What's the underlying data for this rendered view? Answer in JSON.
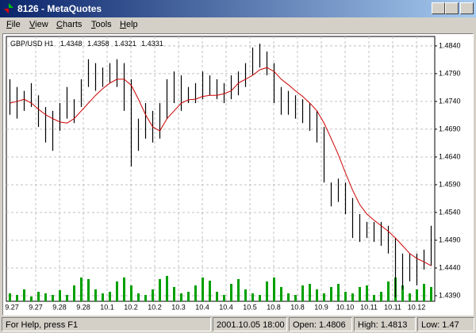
{
  "window": {
    "title": "8126 - MetaQuotes",
    "menu": [
      "File",
      "View",
      "Charts",
      "Tools",
      "Help"
    ]
  },
  "chart_data": {
    "type": "ohlc",
    "title": "GBP/USD H1",
    "quote": [
      "1.4348",
      "1.4358",
      "1.4321",
      "1.4331"
    ],
    "x_labels": [
      "9.27",
      "9.27",
      "9.28",
      "9.28",
      "10.1",
      "10.2",
      "10.2",
      "10.3",
      "10.4",
      "10.4",
      "10.5",
      "10.8",
      "10.8",
      "10.9",
      "10.10",
      "10.11",
      "10.11",
      "10.12"
    ],
    "high": [
      1.478,
      1.4766,
      1.4759,
      1.4773,
      1.4751,
      1.473,
      1.4723,
      1.4737,
      1.4766,
      1.4744,
      1.478,
      1.4816,
      1.4809,
      1.4801,
      1.4809,
      1.4816,
      1.4809,
      1.478,
      1.4709,
      1.4737,
      1.4723,
      1.4737,
      1.478,
      1.4794,
      1.4787,
      1.4766,
      1.4773,
      1.4794,
      1.4787,
      1.478,
      1.4773,
      1.4787,
      1.4794,
      1.4809,
      1.4837,
      1.4844,
      1.483,
      1.4809,
      1.4766,
      1.4759,
      1.4751,
      1.4744,
      1.4737,
      1.4723,
      1.4694,
      1.4594,
      1.4601,
      1.4594,
      1.4566,
      1.4537,
      1.4523,
      1.4523,
      1.4523,
      1.4516,
      1.4494,
      1.4466,
      1.4466,
      1.4466,
      1.4473,
      1.4516
    ],
    "low": [
      1.4716,
      1.4709,
      1.4723,
      1.473,
      1.4694,
      1.4666,
      1.4651,
      1.4687,
      1.4709,
      1.4701,
      1.473,
      1.4766,
      1.4759,
      1.4766,
      1.4773,
      1.4766,
      1.4723,
      1.4623,
      1.4651,
      1.4673,
      1.4666,
      1.4673,
      1.4709,
      1.4737,
      1.4723,
      1.4737,
      1.4737,
      1.4744,
      1.4751,
      1.4744,
      1.4737,
      1.4744,
      1.4751,
      1.4766,
      1.4787,
      1.4801,
      1.4787,
      1.4737,
      1.4716,
      1.4716,
      1.4709,
      1.4701,
      1.4687,
      1.4666,
      1.4594,
      1.4551,
      1.4559,
      1.4537,
      1.4494,
      1.4487,
      1.4494,
      1.4487,
      1.448,
      1.4466,
      1.4387,
      1.4401,
      1.4416,
      1.4409,
      1.4437,
      1.4444
    ],
    "ma_values": [
      1.4737,
      1.474,
      1.4744,
      1.4737,
      1.4726,
      1.4716,
      1.4709,
      1.4703,
      1.4701,
      1.4709,
      1.4723,
      1.4737,
      1.4751,
      1.4763,
      1.4773,
      1.478,
      1.478,
      1.4769,
      1.4744,
      1.4716,
      1.4694,
      1.4687,
      1.4709,
      1.4723,
      1.4737,
      1.4743,
      1.4744,
      1.4749,
      1.4751,
      1.4751,
      1.4754,
      1.4759,
      1.4773,
      1.478,
      1.4787,
      1.4797,
      1.4801,
      1.4794,
      1.478,
      1.477,
      1.4759,
      1.4749,
      1.4737,
      1.4723,
      1.4701,
      1.4673,
      1.4644,
      1.4611,
      1.458,
      1.4554,
      1.4537,
      1.4526,
      1.4516,
      1.4506,
      1.4494,
      1.448,
      1.4466,
      1.4457,
      1.4451,
      1.4444
    ],
    "ma_color": "#cc0000",
    "bar_color": "#000000",
    "volume": [
      10,
      8,
      15,
      6,
      12,
      10,
      8,
      14,
      8,
      20,
      30,
      28,
      15,
      10,
      12,
      25,
      30,
      20,
      10,
      8,
      15,
      28,
      32,
      18,
      10,
      12,
      20,
      30,
      26,
      12,
      8,
      22,
      28,
      15,
      10,
      8,
      25,
      30,
      18,
      10,
      8,
      20,
      22,
      15,
      10,
      18,
      22,
      12,
      10,
      18,
      20,
      8,
      12,
      25,
      30,
      20,
      10,
      15,
      22,
      18
    ],
    "volume_ylim": [
      0,
      40
    ],
    "volume_color": "#00a000",
    "ylim": [
      1.438,
      1.4857
    ],
    "yticks": [
      {
        "value": 1.484,
        "label": "1.4840"
      },
      {
        "value": 1.479,
        "label": "1.4790"
      },
      {
        "value": 1.474,
        "label": "1.4740"
      },
      {
        "value": 1.469,
        "label": "1.4690"
      },
      {
        "value": 1.464,
        "label": "1.4640"
      },
      {
        "value": 1.459,
        "label": "1.4590"
      },
      {
        "value": 1.454,
        "label": "1.4540"
      },
      {
        "value": 1.449,
        "label": "1.4490"
      },
      {
        "value": 1.444,
        "label": "1.4440"
      },
      {
        "value": 1.439,
        "label": "1.4390"
      }
    ],
    "grid": true
  },
  "status": {
    "help": "For Help, press F1",
    "time": "2001.10.05 18:00",
    "open": "Open: 1.4806",
    "high": "High: 1.4813",
    "low": "Low: 1.47"
  }
}
